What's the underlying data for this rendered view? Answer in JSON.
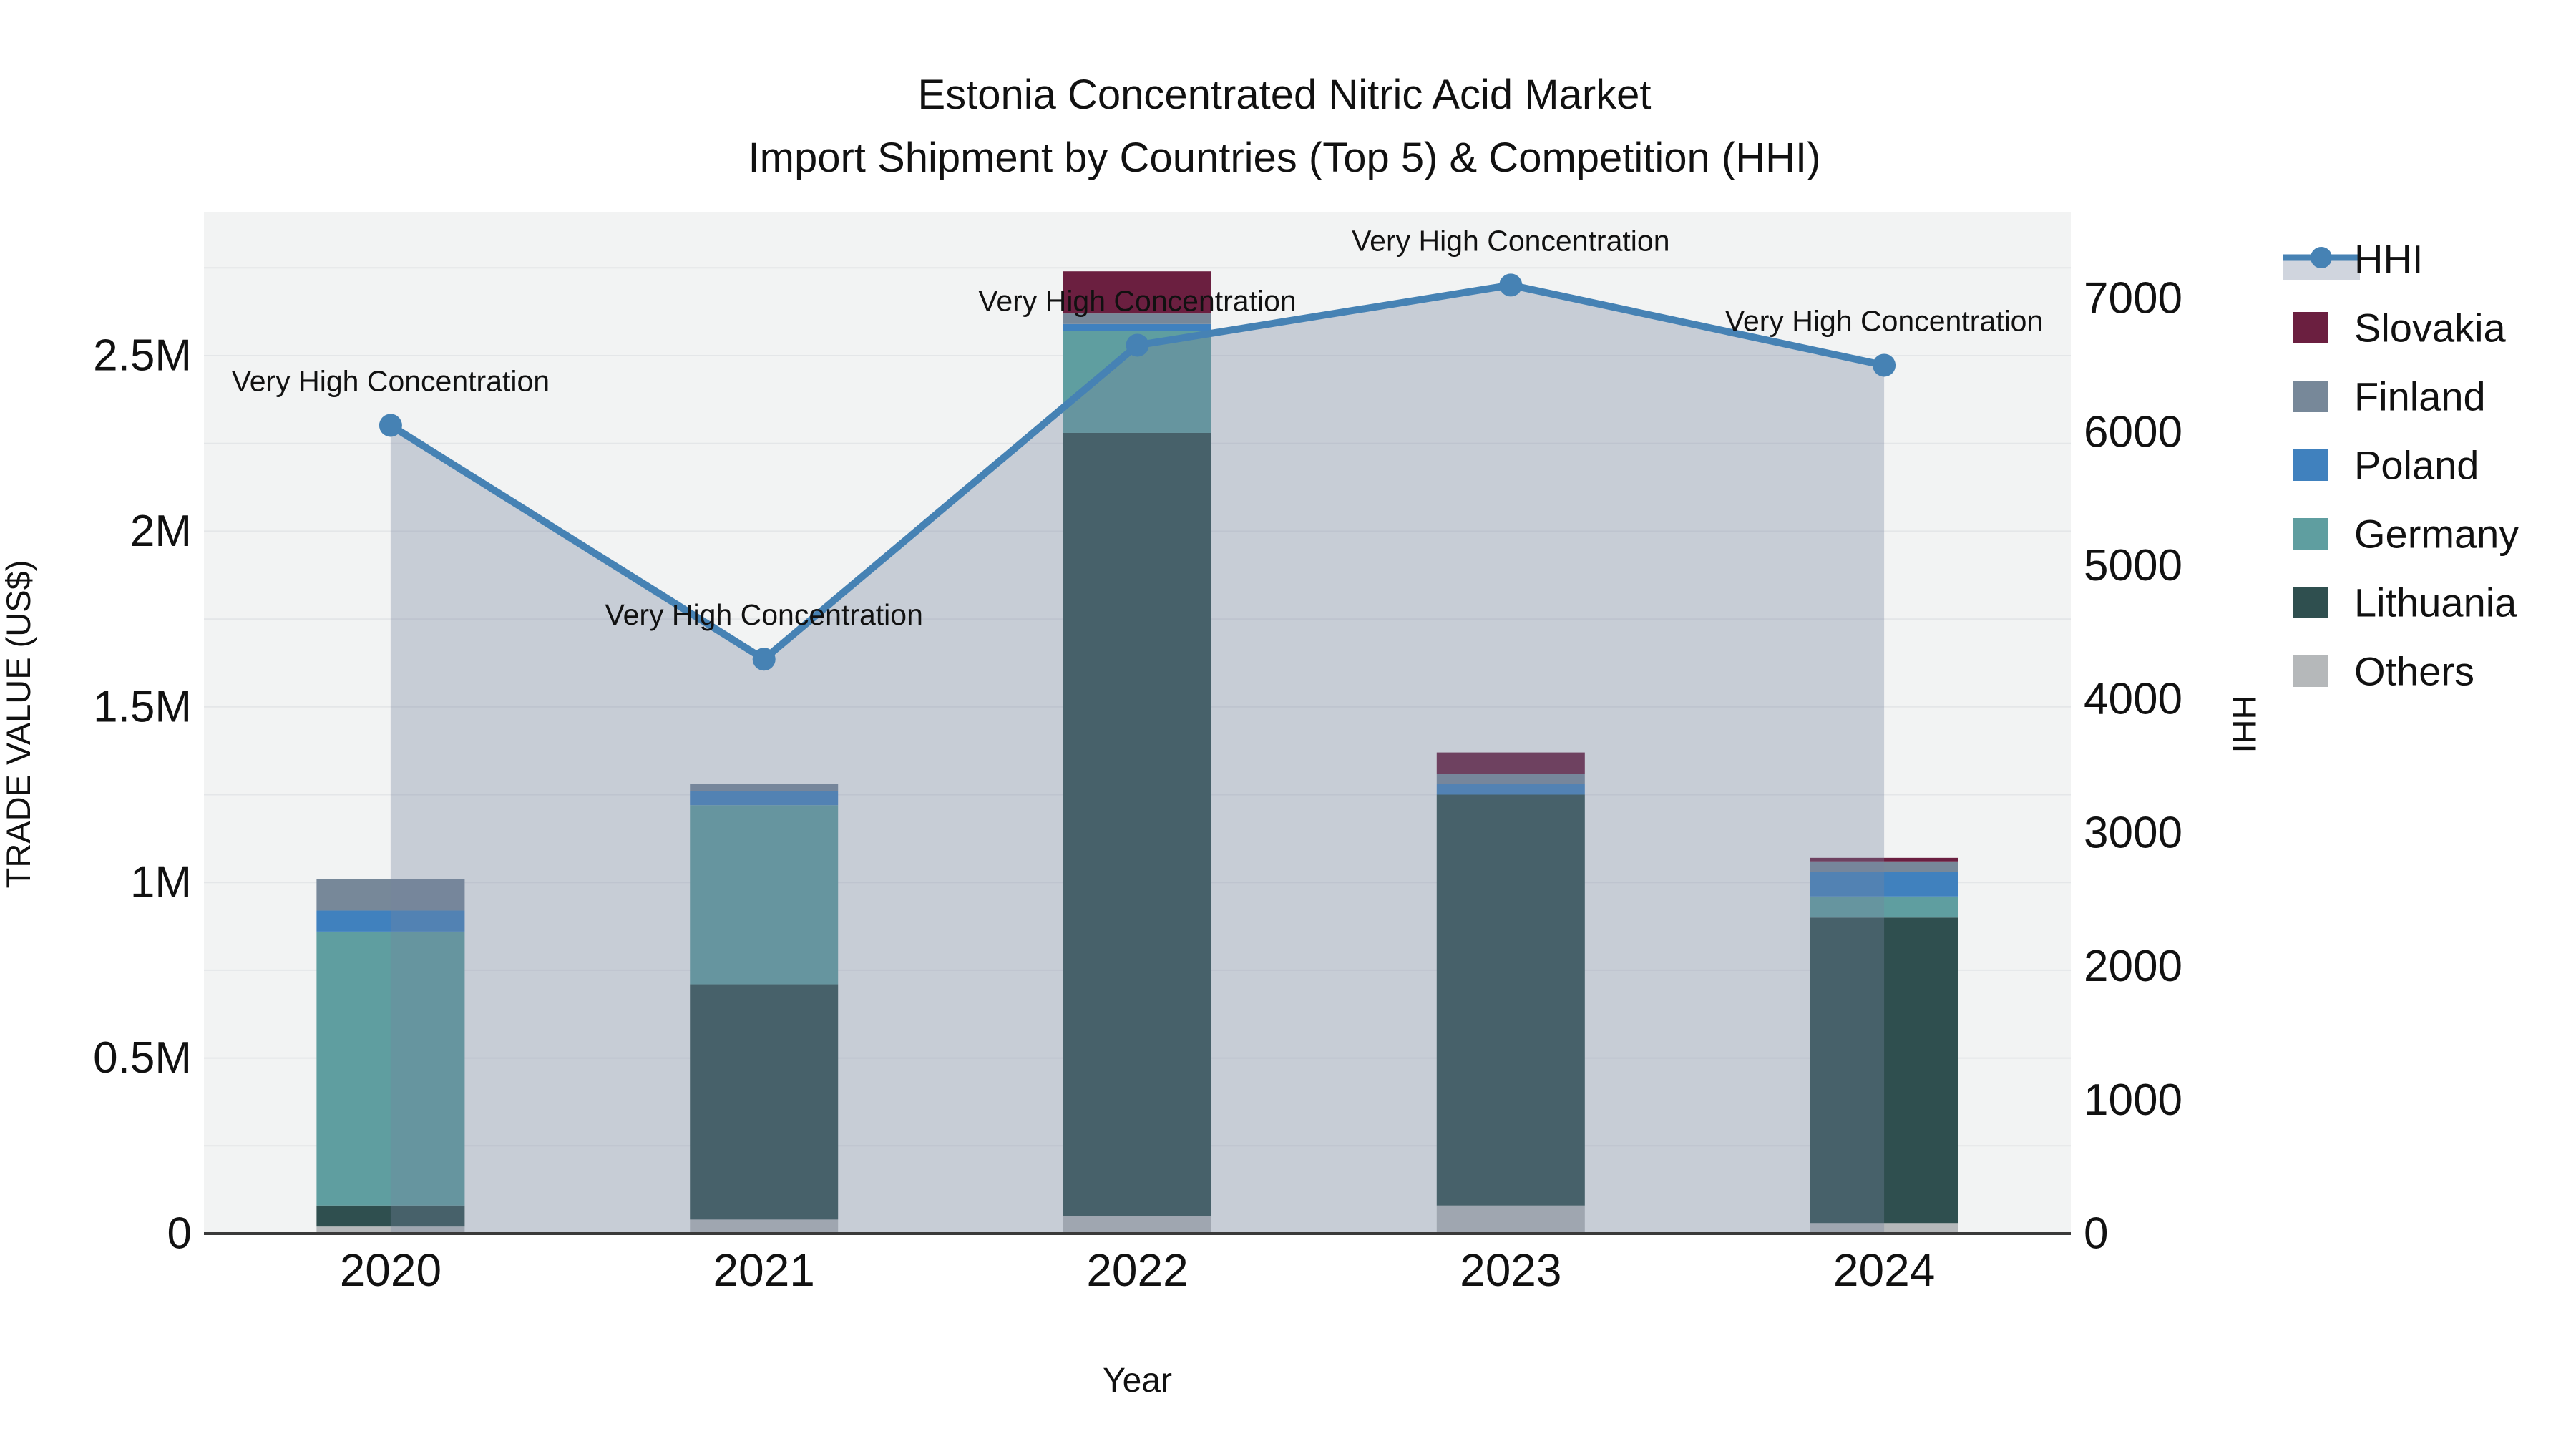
{
  "chart_data": {
    "type": "combo-stacked-bar-line-area",
    "title_lines": [
      "Estonia Concentrated Nitric Acid Market",
      "Import Shipment by Countries (Top 5) & Competition (HHI)"
    ],
    "categories": [
      "2020",
      "2021",
      "2022",
      "2023",
      "2024"
    ],
    "xlabel": "Year",
    "y_left": {
      "label": "TRADE VALUE (US$)",
      "tick_labels": [
        "0",
        "0.5M",
        "1M",
        "1.5M",
        "2M",
        "2.5M"
      ],
      "tick_values_musd": [
        0,
        0.5,
        1,
        1.5,
        2,
        2.5
      ],
      "range_musd": [
        0,
        2.91
      ],
      "grid_step_musd": 0.25
    },
    "y_right": {
      "label": "HHI",
      "tick_labels": [
        "0",
        "1000",
        "2000",
        "3000",
        "4000",
        "5000",
        "6000",
        "7000"
      ],
      "tick_values": [
        0,
        1000,
        2000,
        3000,
        4000,
        5000,
        6000,
        7000
      ],
      "range": [
        0,
        7650
      ]
    },
    "bar_series": [
      {
        "name": "Others",
        "color": "#B5B8BA",
        "values_musd": [
          0.02,
          0.04,
          0.05,
          0.08,
          0.03
        ]
      },
      {
        "name": "Lithuania",
        "color": "#2F4F4F",
        "values_musd": [
          0.06,
          0.67,
          2.23,
          1.17,
          0.87
        ]
      },
      {
        "name": "Germany",
        "color": "#5F9EA0",
        "values_musd": [
          0.78,
          0.51,
          0.29,
          0.0,
          0.06
        ]
      },
      {
        "name": "Poland",
        "color": "#4081BE",
        "values_musd": [
          0.06,
          0.04,
          0.02,
          0.03,
          0.07
        ]
      },
      {
        "name": "Finland",
        "color": "#778899",
        "values_musd": [
          0.09,
          0.02,
          0.03,
          0.03,
          0.03
        ]
      },
      {
        "name": "Slovakia",
        "color": "#6B1F40",
        "values_musd": [
          0.0,
          0.0,
          0.12,
          0.06,
          0.01
        ]
      }
    ],
    "bar_totals_musd": [
      1.01,
      1.28,
      2.74,
      1.37,
      1.07
    ],
    "line_series": {
      "name": "HHI",
      "axis": "right",
      "color": "#4682B4",
      "area_fill": "rgba(118,133,157,0.34)",
      "values": [
        6050,
        4300,
        6650,
        7100,
        6500
      ],
      "point_annotations": [
        "Very High Concentration",
        "Very High Concentration",
        "Very High Concentration",
        "Very High Concentration",
        "Very High Concentration"
      ]
    },
    "legend": {
      "position": "right",
      "entries": [
        {
          "name": "HHI",
          "type": "line-area",
          "color": "#4682B4"
        },
        {
          "name": "Slovakia",
          "type": "swatch",
          "color": "#6B1F40"
        },
        {
          "name": "Finland",
          "type": "swatch",
          "color": "#778899"
        },
        {
          "name": "Poland",
          "type": "swatch",
          "color": "#4081BE"
        },
        {
          "name": "Germany",
          "type": "swatch",
          "color": "#5F9EA0"
        },
        {
          "name": "Lithuania",
          "type": "swatch",
          "color": "#2F4F4F"
        },
        {
          "name": "Others",
          "type": "swatch",
          "color": "#B5B8BA"
        }
      ]
    },
    "style": {
      "paper_bg": "#FFFFFF",
      "plot_bg": "#F2F3F3",
      "gridline": "#E4E6E8",
      "axis_line": "#3A3A3A",
      "text_color": "#111111"
    }
  }
}
